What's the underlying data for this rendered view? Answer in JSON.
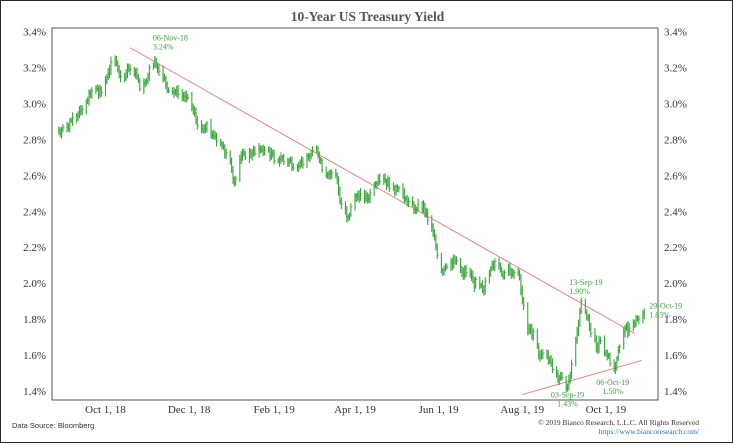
{
  "chart_data": {
    "type": "line",
    "title": "10-Year US Treasury Yield",
    "xlabel": "",
    "ylabel": "",
    "y_ticks": [
      "3.4%",
      "3.2%",
      "3.0%",
      "2.8%",
      "2.6%",
      "2.4%",
      "2.2%",
      "2.0%",
      "1.8%",
      "1.6%",
      "1.4%"
    ],
    "ylim": [
      1.35,
      3.42
    ],
    "x_range": [
      "2018-08-23",
      "2019-11-08"
    ],
    "x_ticks": [
      {
        "date": "2018-10-01",
        "label": "Oct 1, 18"
      },
      {
        "date": "2018-12-01",
        "label": "Dec 1, 18"
      },
      {
        "date": "2019-02-01",
        "label": "Feb 1, 19"
      },
      {
        "date": "2019-04-01",
        "label": "Apr 1, 19"
      },
      {
        "date": "2019-06-01",
        "label": "Jun 1, 19"
      },
      {
        "date": "2019-08-01",
        "label": "Aug 1, 19"
      },
      {
        "date": "2019-10-01",
        "label": "Oct 1, 19"
      }
    ],
    "grid": false,
    "series": [
      {
        "color": "#3aa53a",
        "style": "daily high-low bars",
        "points": [
          [
            "2018-08-28",
            2.85
          ],
          [
            "2018-09-03",
            2.87
          ],
          [
            "2018-09-07",
            2.92
          ],
          [
            "2018-09-12",
            2.96
          ],
          [
            "2018-09-17",
            3.01
          ],
          [
            "2018-09-21",
            3.07
          ],
          [
            "2018-09-25",
            3.08
          ],
          [
            "2018-09-28",
            3.06
          ],
          [
            "2018-10-03",
            3.17
          ],
          [
            "2018-10-05",
            3.23
          ],
          [
            "2018-10-09",
            3.22
          ],
          [
            "2018-10-12",
            3.15
          ],
          [
            "2018-10-16",
            3.17
          ],
          [
            "2018-10-19",
            3.19
          ],
          [
            "2018-10-23",
            3.17
          ],
          [
            "2018-10-26",
            3.08
          ],
          [
            "2018-10-30",
            3.12
          ],
          [
            "2018-11-02",
            3.2
          ],
          [
            "2018-11-06",
            3.24
          ],
          [
            "2018-11-09",
            3.18
          ],
          [
            "2018-11-13",
            3.14
          ],
          [
            "2018-11-16",
            3.07
          ],
          [
            "2018-11-20",
            3.06
          ],
          [
            "2018-11-23",
            3.05
          ],
          [
            "2018-11-28",
            3.04
          ],
          [
            "2018-12-03",
            2.98
          ],
          [
            "2018-12-06",
            2.91
          ],
          [
            "2018-12-10",
            2.86
          ],
          [
            "2018-12-14",
            2.89
          ],
          [
            "2018-12-18",
            2.82
          ],
          [
            "2018-12-21",
            2.79
          ],
          [
            "2018-12-26",
            2.76
          ],
          [
            "2018-12-31",
            2.68
          ],
          [
            "2019-01-03",
            2.56
          ],
          [
            "2019-01-08",
            2.71
          ],
          [
            "2019-01-11",
            2.7
          ],
          [
            "2019-01-16",
            2.73
          ],
          [
            "2019-01-22",
            2.74
          ],
          [
            "2019-01-28",
            2.74
          ],
          [
            "2019-02-01",
            2.68
          ],
          [
            "2019-02-06",
            2.7
          ],
          [
            "2019-02-12",
            2.68
          ],
          [
            "2019-02-18",
            2.65
          ],
          [
            "2019-02-22",
            2.66
          ],
          [
            "2019-02-28",
            2.72
          ],
          [
            "2019-03-04",
            2.75
          ],
          [
            "2019-03-08",
            2.63
          ],
          [
            "2019-03-13",
            2.61
          ],
          [
            "2019-03-18",
            2.6
          ],
          [
            "2019-03-22",
            2.44
          ],
          [
            "2019-03-27",
            2.37
          ],
          [
            "2019-04-01",
            2.48
          ],
          [
            "2019-04-05",
            2.5
          ],
          [
            "2019-04-10",
            2.47
          ],
          [
            "2019-04-15",
            2.55
          ],
          [
            "2019-04-18",
            2.58
          ],
          [
            "2019-04-23",
            2.57
          ],
          [
            "2019-04-29",
            2.53
          ],
          [
            "2019-05-03",
            2.53
          ],
          [
            "2019-05-09",
            2.45
          ],
          [
            "2019-05-14",
            2.41
          ],
          [
            "2019-05-21",
            2.43
          ],
          [
            "2019-05-28",
            2.27
          ],
          [
            "2019-06-03",
            2.07
          ],
          [
            "2019-06-07",
            2.09
          ],
          [
            "2019-06-12",
            2.13
          ],
          [
            "2019-06-18",
            2.06
          ],
          [
            "2019-06-21",
            2.06
          ],
          [
            "2019-06-26",
            2.01
          ],
          [
            "2019-07-03",
            1.96
          ],
          [
            "2019-07-08",
            2.05
          ],
          [
            "2019-07-12",
            2.12
          ],
          [
            "2019-07-17",
            2.05
          ],
          [
            "2019-07-23",
            2.07
          ],
          [
            "2019-07-29",
            2.06
          ],
          [
            "2019-08-01",
            1.91
          ],
          [
            "2019-08-05",
            1.74
          ],
          [
            "2019-08-09",
            1.73
          ],
          [
            "2019-08-14",
            1.59
          ],
          [
            "2019-08-19",
            1.6
          ],
          [
            "2019-08-23",
            1.52
          ],
          [
            "2019-08-28",
            1.47
          ],
          [
            "2019-09-03",
            1.43
          ],
          [
            "2019-09-06",
            1.55
          ],
          [
            "2019-09-10",
            1.73
          ],
          [
            "2019-09-13",
            1.9
          ],
          [
            "2019-09-17",
            1.81
          ],
          [
            "2019-09-20",
            1.72
          ],
          [
            "2019-09-24",
            1.64
          ],
          [
            "2019-09-27",
            1.68
          ],
          [
            "2019-10-02",
            1.6
          ],
          [
            "2019-10-06",
            1.5
          ],
          [
            "2019-10-09",
            1.58
          ],
          [
            "2019-10-14",
            1.73
          ],
          [
            "2019-10-18",
            1.75
          ],
          [
            "2019-10-22",
            1.77
          ],
          [
            "2019-10-25",
            1.8
          ],
          [
            "2019-10-29",
            1.83
          ]
        ]
      }
    ],
    "trendlines": [
      {
        "color": "#e07a7a",
        "from": [
          "2018-10-19",
          3.31
        ],
        "to": [
          "2019-10-22",
          1.72
        ]
      },
      {
        "color": "#e07a7a",
        "from": [
          "2019-08-01",
          1.38
        ],
        "to": [
          "2019-10-27",
          1.57
        ]
      }
    ],
    "annotations": [
      {
        "date": "2018-11-06",
        "value": 3.24,
        "lines": [
          "06-Nov-18",
          "3.24%"
        ],
        "position": "above"
      },
      {
        "date": "2019-09-13",
        "value": 1.9,
        "lines": [
          "13-Sep-19",
          "1.90%"
        ],
        "position": "above"
      },
      {
        "date": "2019-10-29",
        "value": 1.83,
        "lines": [
          "29-Oct-19",
          "1.83%"
        ],
        "position": "right"
      },
      {
        "date": "2019-09-03",
        "value": 1.43,
        "lines": [
          "03-Sep-19",
          "1.43%"
        ],
        "position": "below"
      },
      {
        "date": "2019-10-06",
        "value": 1.5,
        "lines": [
          "06-Oct-19",
          "1.50%"
        ],
        "position": "below"
      }
    ]
  },
  "footer": {
    "source": "Data Source: Bloomberg",
    "copyright": "© 2019 Bianco Research, L.L.C. All Rights Reserved",
    "url": "https://www.biancoresearch.com/"
  }
}
